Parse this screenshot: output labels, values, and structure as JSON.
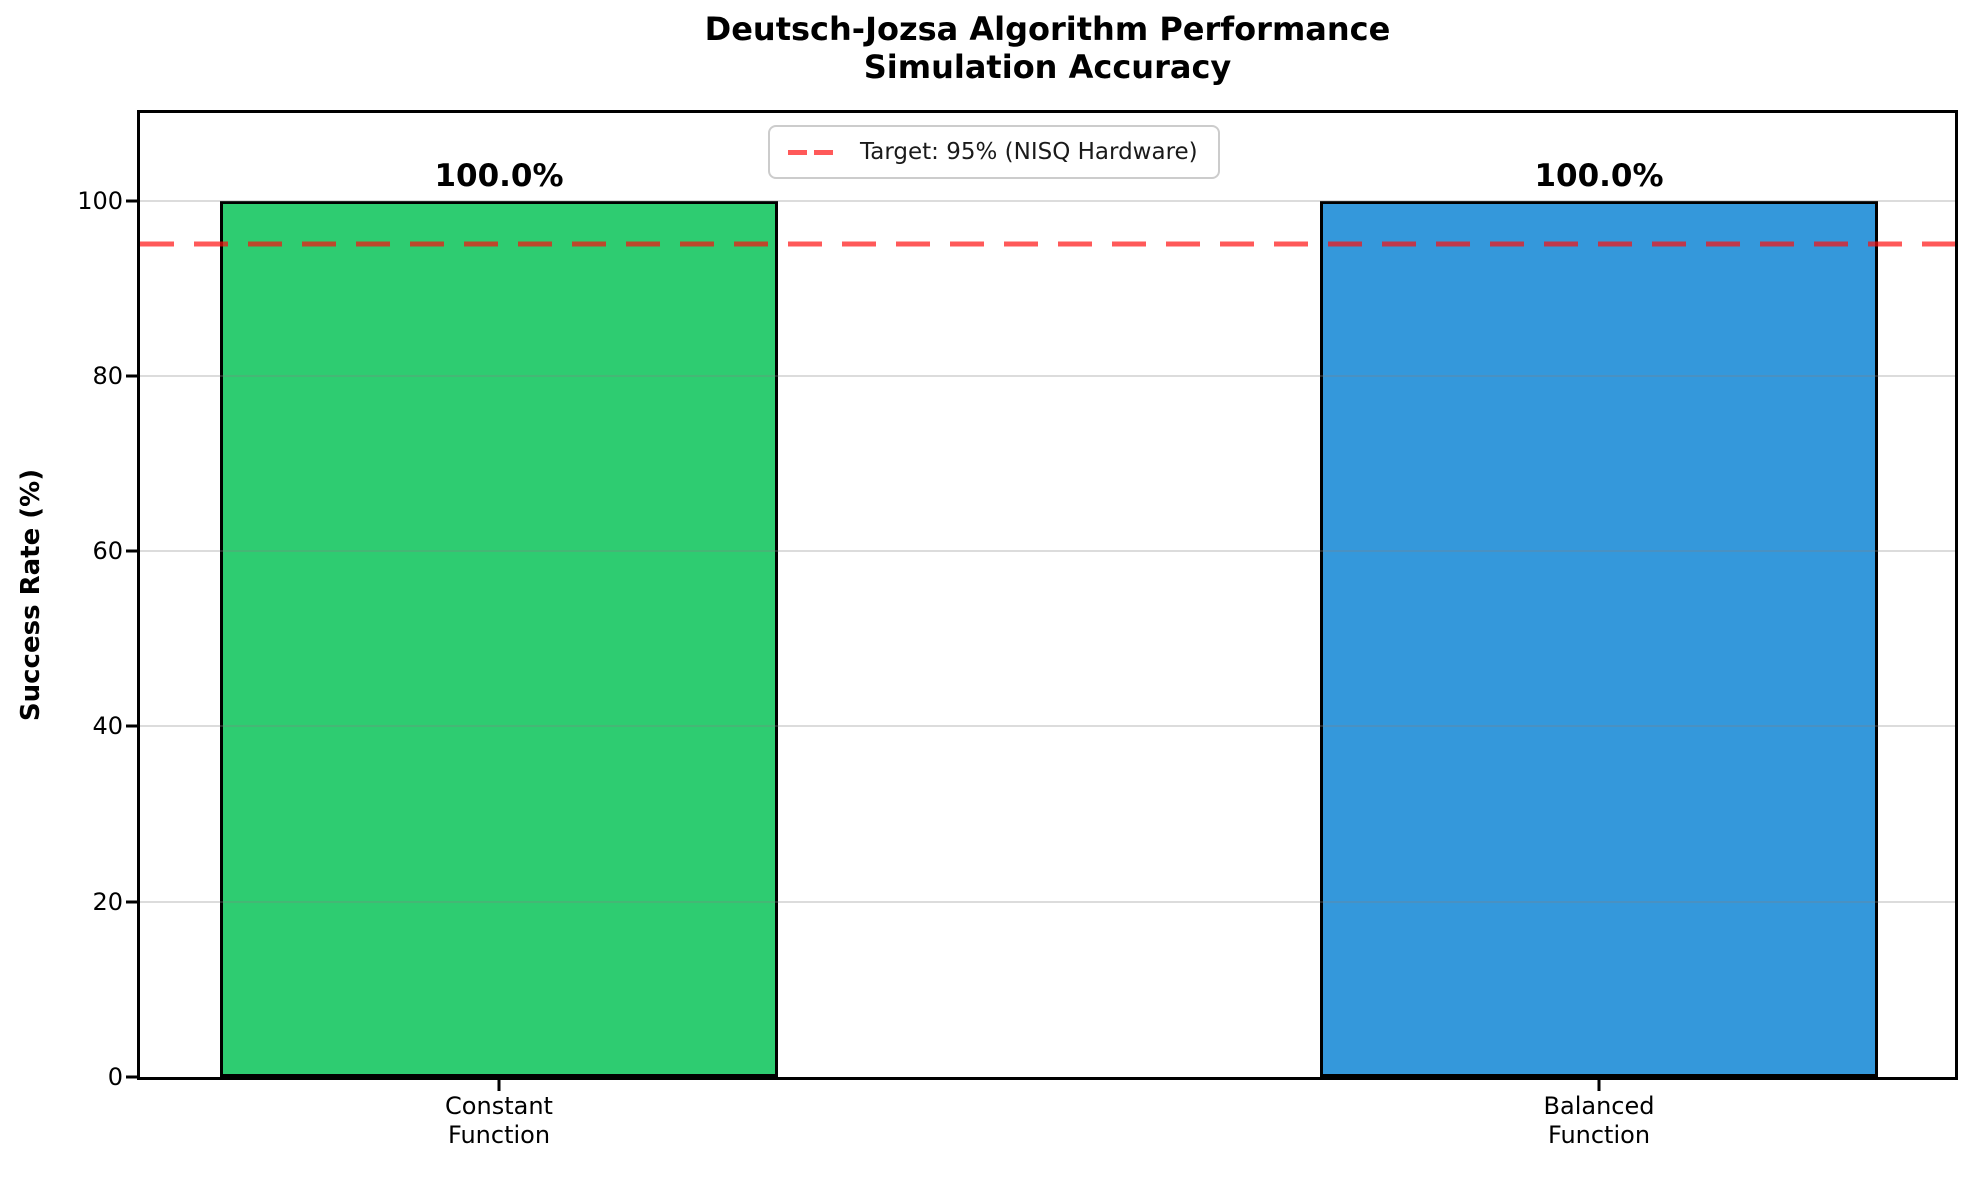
{
  "title": {
    "line1": "Deutsch-Jozsa Algorithm Performance",
    "line2": "Simulation Accuracy"
  },
  "y_axis": {
    "label": "Success Rate (%)",
    "ticks": [
      0,
      20,
      40,
      60,
      80,
      100
    ]
  },
  "x_axis": {
    "categories": [
      {
        "line1": "Constant",
        "line2": "Function"
      },
      {
        "line1": "Balanced",
        "line2": "Function"
      }
    ]
  },
  "bars": [
    {
      "name": "Constant Function",
      "value": 100.0,
      "label": "100.0%",
      "color": "#2ecc71"
    },
    {
      "name": "Balanced Function",
      "value": 100.0,
      "label": "100.0%",
      "color": "#3498db"
    }
  ],
  "legend": {
    "label": "Target: 95% (NISQ Hardware)"
  },
  "target": {
    "value": 95
  },
  "colors": {
    "bar_constant": "#2ecc71",
    "bar_balanced": "#3498db",
    "bar_edge": "#000000",
    "target_line": "rgba(255,10,10,0.68)",
    "grid": "rgba(128,128,128,0.28)",
    "legend_border": "#cccccc",
    "text": "#000000"
  },
  "chart_data": {
    "type": "bar",
    "title": "Deutsch-Jozsa Algorithm Performance\nSimulation Accuracy",
    "categories": [
      "Constant Function",
      "Balanced Function"
    ],
    "values": [
      100.0,
      100.0
    ],
    "bar_labels": [
      "100.0%",
      "100.0%"
    ],
    "bar_colors": [
      "#2ecc71",
      "#3498db"
    ],
    "bar_edge_color": "#000000",
    "xlabel": "",
    "ylabel": "Success Rate (%)",
    "ylim": [
      0,
      110
    ],
    "yticks": [
      0,
      20,
      40,
      60,
      80,
      100
    ],
    "grid": true,
    "grid_axis": "y",
    "annotations": [
      {
        "type": "hline",
        "y": 95,
        "color": "red",
        "linestyle": "dashed",
        "label": "Target: 95% (NISQ Hardware)"
      }
    ],
    "legend_entries": [
      "Target: 95% (NISQ Hardware)"
    ],
    "legend_position": "upper center"
  }
}
